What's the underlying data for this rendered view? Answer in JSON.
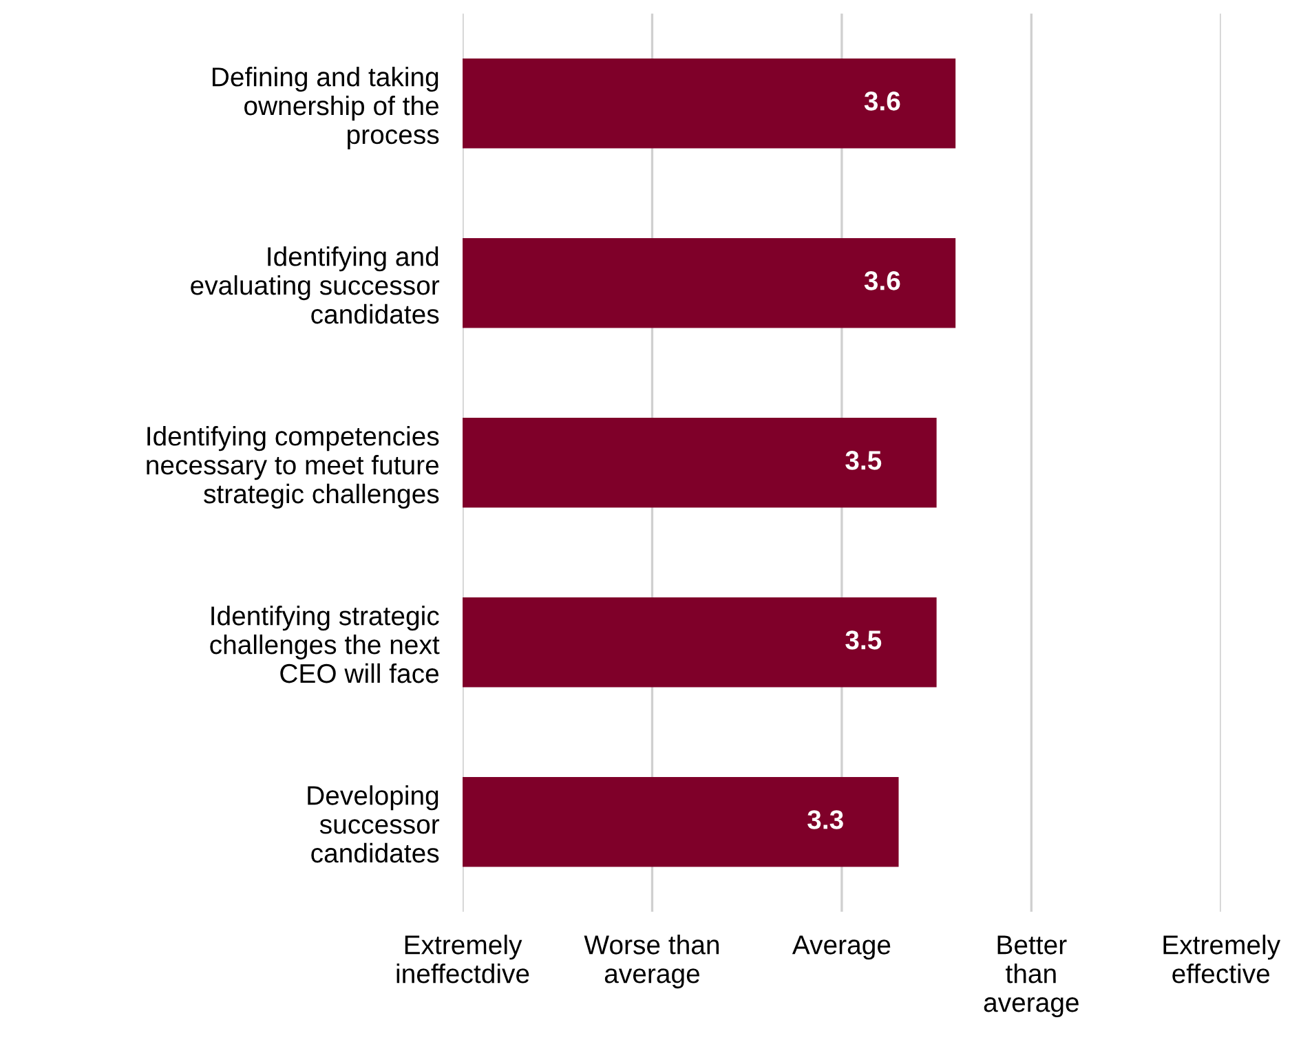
{
  "chart_data": {
    "type": "bar",
    "orientation": "horizontal",
    "categories": [
      "Defining and taking\nownership of the\nprocess",
      "Identifying and\nevaluating successor\ncandidates",
      "Identifying competencies\nnecessary to meet future\nstrategic challenges",
      "Identifying strategic\nchallenges the next\nCEO will face",
      "Developing\nsuccessor\ncandidates"
    ],
    "values": [
      3.6,
      3.6,
      3.5,
      3.5,
      3.3
    ],
    "color": "#7f0029",
    "xlim": [
      1,
      5
    ],
    "annotations": [
      "Extremely\nineffectdive",
      "Worse than\naverage",
      "Average",
      "Better\nthan\naverage",
      "Extremely\neffective"
    ],
    "grid": "x",
    "data_labels": true
  }
}
